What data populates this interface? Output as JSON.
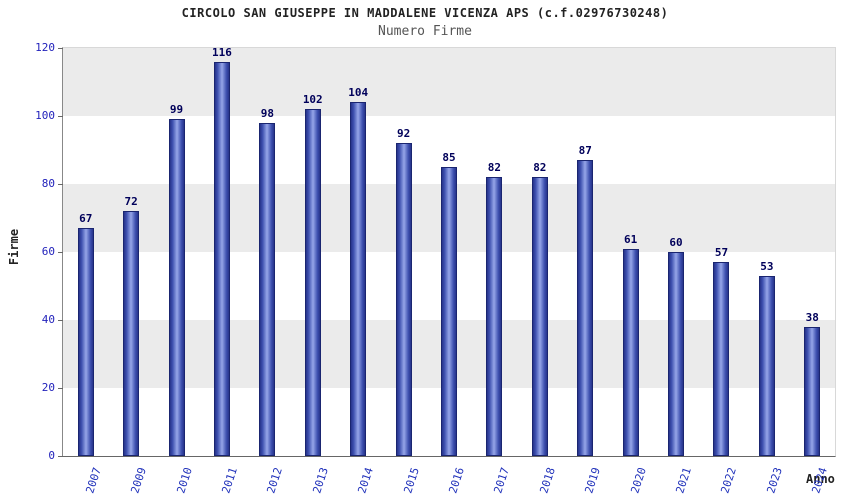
{
  "title": "CIRCOLO SAN GIUSEPPE IN MADDALENE VICENZA APS (c.f.02976730248)",
  "subtitle": "Numero Firme",
  "chart_data": {
    "type": "bar",
    "title": "CIRCOLO SAN GIUSEPPE IN MADDALENE VICENZA APS (c.f.02976730248)",
    "subtitle": "Numero Firme",
    "categories": [
      "2007",
      "2009",
      "2010",
      "2011",
      "2012",
      "2013",
      "2014",
      "2015",
      "2016",
      "2017",
      "2018",
      "2019",
      "2020",
      "2021",
      "2022",
      "2023",
      "2024"
    ],
    "values": [
      67,
      72,
      99,
      116,
      98,
      102,
      104,
      92,
      85,
      82,
      82,
      87,
      61,
      60,
      57,
      53,
      38
    ],
    "xlabel": "Anno",
    "ylabel": "Firme",
    "ylim": [
      0,
      120
    ],
    "yticks": [
      0,
      20,
      40,
      60,
      80,
      100,
      120
    ],
    "grid": "alternating-horizontal-bands",
    "legend": "none"
  },
  "colors": {
    "bar_edge": "#1a2570",
    "bar_dark": "#27348b",
    "bar_light": "#96a6e9",
    "band_gray": "#ebebeb",
    "band_white": "#ffffff",
    "tick_label": "#2222bb",
    "value_label": "#00005a",
    "title_text": "#222222",
    "subtitle_text": "#555555"
  }
}
